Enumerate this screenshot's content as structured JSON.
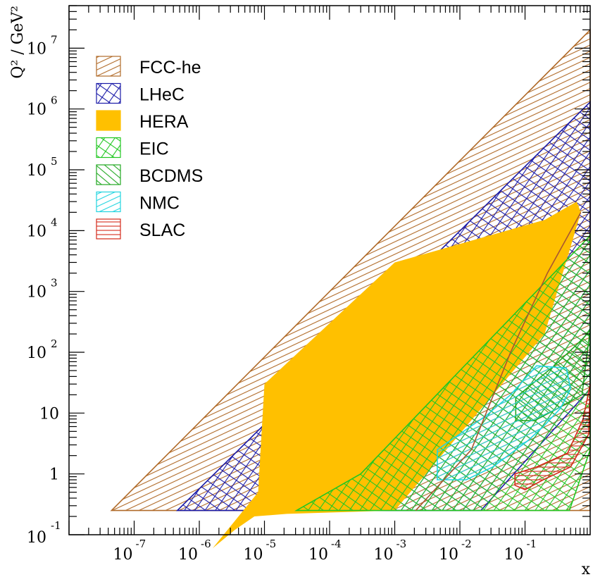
{
  "chart_data": {
    "type": "area",
    "title": "",
    "xlabel": "x",
    "ylabel": "Q² / GeV²",
    "xscale": "log",
    "yscale": "log",
    "xlim": [
      1e-08,
      1
    ],
    "ylim": [
      0.1,
      50000000.0
    ],
    "grid": false,
    "legend_position": "top-left",
    "x_ticks": [
      {
        "base": "10",
        "exp": "-7",
        "value": 1e-07
      },
      {
        "base": "10",
        "exp": "-6",
        "value": 1e-06
      },
      {
        "base": "10",
        "exp": "-5",
        "value": 1e-05
      },
      {
        "base": "10",
        "exp": "-4",
        "value": 0.0001
      },
      {
        "base": "10",
        "exp": "-3",
        "value": 0.001
      },
      {
        "base": "10",
        "exp": "-2",
        "value": 0.01
      },
      {
        "base": "10",
        "exp": "-1",
        "value": 0.1
      }
    ],
    "y_ticks": [
      {
        "base": "10",
        "exp": "-1",
        "value": 0.1
      },
      {
        "base": "1",
        "exp": "",
        "value": 1
      },
      {
        "base": "10",
        "exp": "",
        "value": 10
      },
      {
        "base": "10",
        "exp": "2",
        "value": 100
      },
      {
        "base": "10",
        "exp": "3",
        "value": 1000
      },
      {
        "base": "10",
        "exp": "4",
        "value": 10000
      },
      {
        "base": "10",
        "exp": "5",
        "value": 100000
      },
      {
        "base": "10",
        "exp": "6",
        "value": 1000000
      },
      {
        "base": "10",
        "exp": "7",
        "value": 10000000
      }
    ],
    "series": [
      {
        "name": "FCC-he",
        "color": "#b06a28",
        "fill": "hatch-diagonal",
        "region": [
          [
            4.5e-08,
            0.25
          ],
          [
            1.0,
            0.25
          ],
          [
            1.0,
            20000000.0
          ]
        ]
      },
      {
        "name": "LHeC",
        "color": "#1a1aa8",
        "fill": "hatch-cross",
        "region": [
          [
            4.6e-07,
            0.25
          ],
          [
            0.021,
            0.25
          ],
          [
            1.0,
            25
          ],
          [
            1.0,
            1300000.0
          ]
        ]
      },
      {
        "name": "HERA",
        "color": "#ffc000",
        "fill": "solid",
        "region": [
          [
            1.6e-06,
            0.06
          ],
          [
            3.5e-06,
            0.12
          ],
          [
            7e-06,
            0.2
          ],
          [
            2.2e-05,
            0.22
          ],
          [
            0.001,
            0.25
          ],
          [
            0.2,
            200
          ],
          [
            0.72,
            20000
          ],
          [
            0.62,
            30000
          ],
          [
            0.2,
            15000
          ],
          [
            0.001,
            3000
          ],
          [
            1e-05,
            30
          ],
          [
            8e-06,
            0.5
          ]
        ]
      },
      {
        "name": "EIC",
        "color": "#22c722",
        "fill": "hatch-cross",
        "region": [
          [
            3.1e-05,
            0.25
          ],
          [
            0.48,
            0.25
          ],
          [
            1.0,
            2.5
          ],
          [
            1.0,
            9000
          ],
          [
            0.97,
            8000
          ],
          [
            0.01,
            50
          ],
          [
            0.0003,
            1.0
          ]
        ]
      },
      {
        "name": "BCDMS",
        "color": "#22a822",
        "fill": "hatch-diagonal-right",
        "region": [
          [
            0.072,
            7.5
          ],
          [
            0.14,
            7.5
          ],
          [
            0.32,
            12
          ],
          [
            0.75,
            20
          ],
          [
            1.0,
            240
          ],
          [
            0.9,
            200
          ],
          [
            0.65,
            140
          ],
          [
            0.28,
            60
          ],
          [
            0.072,
            18
          ]
        ]
      },
      {
        "name": "NMC",
        "color": "#22d4e0",
        "fill": "hatch-diagonal",
        "region": [
          [
            0.0045,
            0.8
          ],
          [
            0.0125,
            0.8
          ],
          [
            0.032,
            1.3
          ],
          [
            0.11,
            3.5
          ],
          [
            0.19,
            6
          ],
          [
            0.35,
            12
          ],
          [
            0.5,
            25
          ],
          [
            0.43,
            55
          ],
          [
            0.15,
            60
          ],
          [
            0.06,
            20
          ],
          [
            0.025,
            9
          ],
          [
            0.0045,
            2.5
          ]
        ]
      },
      {
        "name": "SLAC",
        "color": "#d42a1a",
        "fill": "hatch-horizontal",
        "region": [
          [
            0.07,
            0.65
          ],
          [
            0.1,
            0.55
          ],
          [
            0.19,
            0.8
          ],
          [
            0.5,
            1.3
          ],
          [
            0.95,
            4.5
          ],
          [
            1.0,
            30
          ],
          [
            0.78,
            8
          ],
          [
            0.45,
            2.2
          ],
          [
            0.15,
            1.3
          ],
          [
            0.07,
            1.0
          ]
        ]
      },
      {
        "name": "",
        "color": "#a85530",
        "fill": "line",
        "region": [
          [
            0.0021,
            0.25
          ],
          [
            0.015,
            2.5
          ],
          [
            0.06,
            100
          ],
          [
            0.22,
            2000
          ],
          [
            0.72,
            20000
          ]
        ]
      }
    ]
  }
}
